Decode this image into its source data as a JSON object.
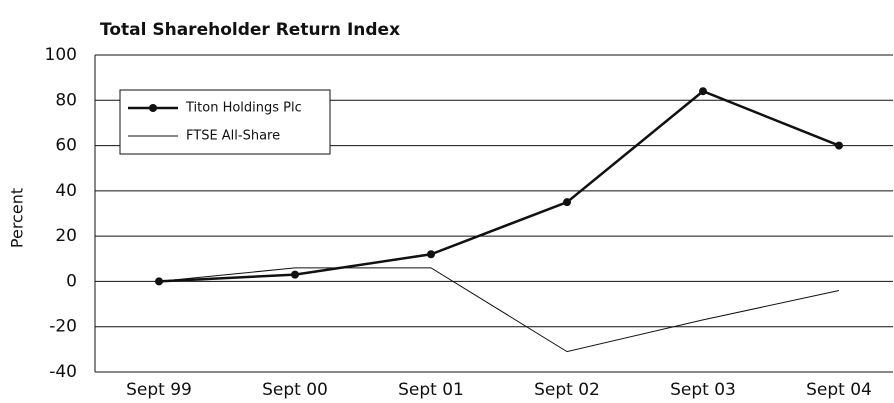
{
  "chart_data": {
    "type": "line",
    "title": "Total Shareholder Return Index",
    "y_label": "Percent",
    "categories": [
      "Sept 99",
      "Sept 00",
      "Sept 01",
      "Sept 02",
      "Sept 03",
      "Sept 04"
    ],
    "series": [
      {
        "name": "Titon Holdings Plc",
        "color": "#111111",
        "values": [
          0,
          3,
          12,
          35,
          84,
          60
        ]
      },
      {
        "name": "FTSE All-Share",
        "color": "#111111",
        "values": [
          0,
          6,
          6,
          -31,
          -17,
          -4
        ]
      }
    ],
    "ylim": [
      -40,
      100
    ],
    "yticks": [
      -40,
      -20,
      0,
      20,
      40,
      60,
      80,
      100
    ],
    "grid": true,
    "legend": "upper-left"
  }
}
